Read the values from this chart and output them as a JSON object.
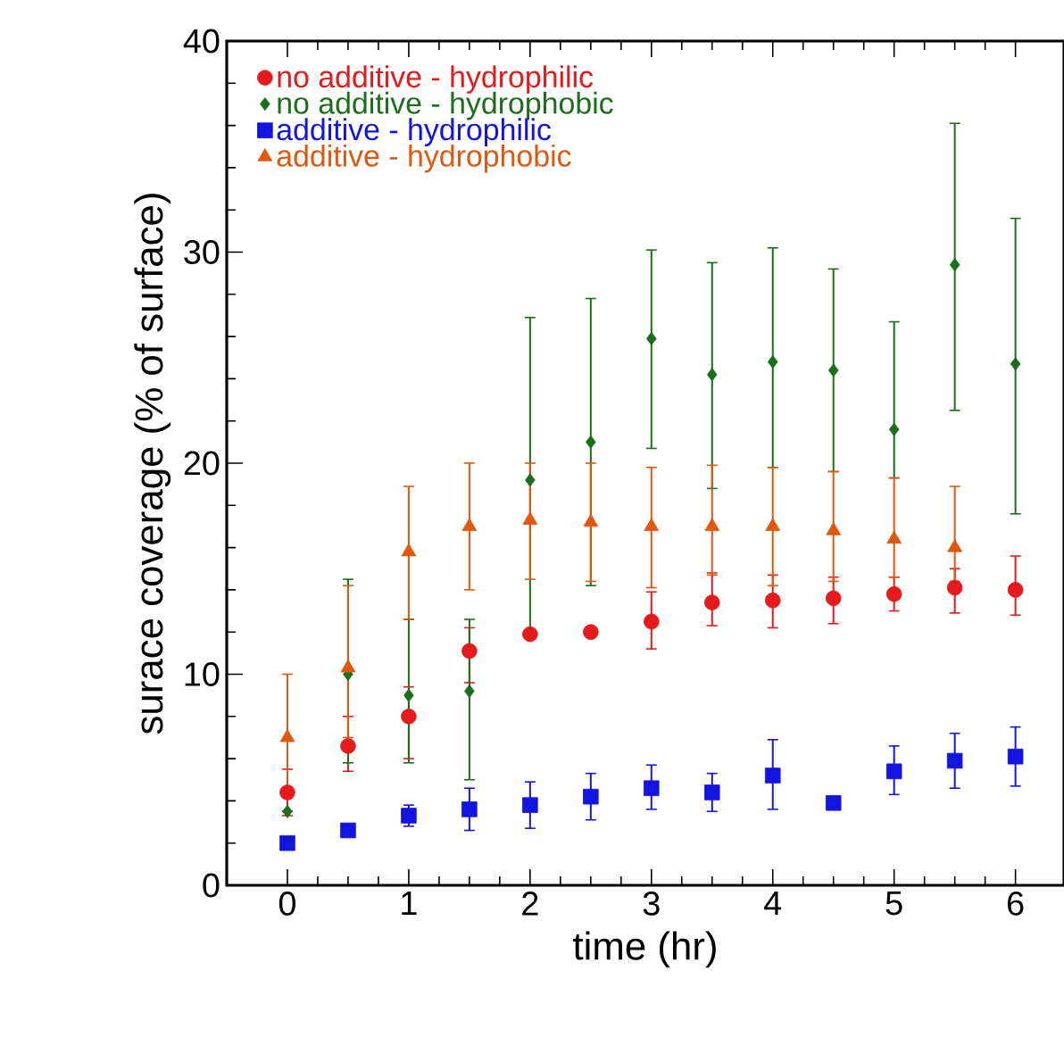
{
  "chart_data": {
    "type": "scatter",
    "xlabel": "time (hr)",
    "ylabel": "surace coverage (% of surface)",
    "x": [
      0,
      0.5,
      1,
      1.5,
      2,
      2.5,
      3,
      3.5,
      4,
      4.5,
      5,
      5.5,
      6
    ],
    "xlim": [
      -0.5,
      6.4
    ],
    "ylim": [
      0,
      40
    ],
    "xticks": [
      0,
      1,
      2,
      3,
      4,
      5,
      6
    ],
    "yticks": [
      0,
      10,
      20,
      30,
      40
    ],
    "legend": "top left",
    "grid": false,
    "series": [
      {
        "name": "no additive - hydrophilic",
        "color": "#e41a1c",
        "marker": "circle",
        "values": [
          4.4,
          6.6,
          8,
          11.1,
          11.9,
          12,
          12.5,
          13.4,
          13.5,
          13.6,
          13.8,
          14.1,
          14
        ],
        "errors": [
          [
            3.3,
            5.5
          ],
          [
            5.4,
            8
          ],
          [
            6,
            9.4
          ],
          [
            9.6,
            12.2
          ],
          null,
          null,
          [
            11.2,
            13.9
          ],
          [
            12.3,
            14.8
          ],
          [
            12.2,
            14.7
          ],
          [
            12.4,
            14.6
          ],
          [
            13,
            14.6
          ],
          [
            12.9,
            15
          ],
          [
            12.8,
            15.6
          ]
        ]
      },
      {
        "name": "no additive - hydrophobic",
        "color": "#1b6e1b",
        "marker": "diamond",
        "values": [
          3.5,
          10,
          9,
          9.2,
          19.2,
          21,
          25.9,
          24.2,
          24.8,
          24.4,
          21.6,
          29.4,
          24.7
        ],
        "errors": [
          null,
          [
            5.8,
            14.5
          ],
          [
            5.8,
            12.6
          ],
          [
            5,
            12.6
          ],
          [
            11.8,
            26.9
          ],
          [
            14.2,
            27.8
          ],
          [
            20.7,
            30.1
          ],
          [
            18.8,
            29.5
          ],
          [
            19.8,
            30.2
          ],
          [
            19.6,
            29.2
          ],
          [
            19.3,
            26.7
          ],
          [
            22.5,
            36.1
          ],
          [
            17.6,
            31.6
          ]
        ]
      },
      {
        "name": "additive - hydrophilic",
        "color": "#1414e0",
        "marker": "square",
        "values": [
          2,
          2.6,
          3.3,
          3.6,
          3.8,
          4.2,
          4.6,
          4.4,
          5.2,
          3.9,
          5.4,
          5.9,
          6.1
        ],
        "errors": [
          null,
          null,
          [
            2.8,
            3.8
          ],
          [
            2.6,
            4.6
          ],
          [
            2.7,
            4.9
          ],
          [
            3.1,
            5.3
          ],
          [
            3.6,
            5.7
          ],
          [
            3.5,
            5.3
          ],
          [
            3.6,
            6.9
          ],
          null,
          [
            4.3,
            6.6
          ],
          [
            4.6,
            7.2
          ],
          [
            4.7,
            7.5
          ]
        ]
      },
      {
        "name": "additive - hydrophobic",
        "color": "#e0580f",
        "marker": "triangle",
        "values": [
          7,
          10.3,
          15.8,
          17,
          17.3,
          17.2,
          17,
          17,
          17,
          16.8,
          16.4,
          16,
          null
        ],
        "errors": [
          [
            4.5,
            10
          ],
          [
            7,
            14.2
          ],
          [
            12.6,
            18.9
          ],
          [
            14,
            20
          ],
          [
            14.5,
            20
          ],
          [
            14.4,
            20
          ],
          [
            14.1,
            19.8
          ],
          [
            14.7,
            19.9
          ],
          [
            14.2,
            19.8
          ],
          [
            14.4,
            19.6
          ],
          [
            14.6,
            19.3
          ],
          [
            14.4,
            18.9
          ],
          null
        ]
      }
    ]
  }
}
